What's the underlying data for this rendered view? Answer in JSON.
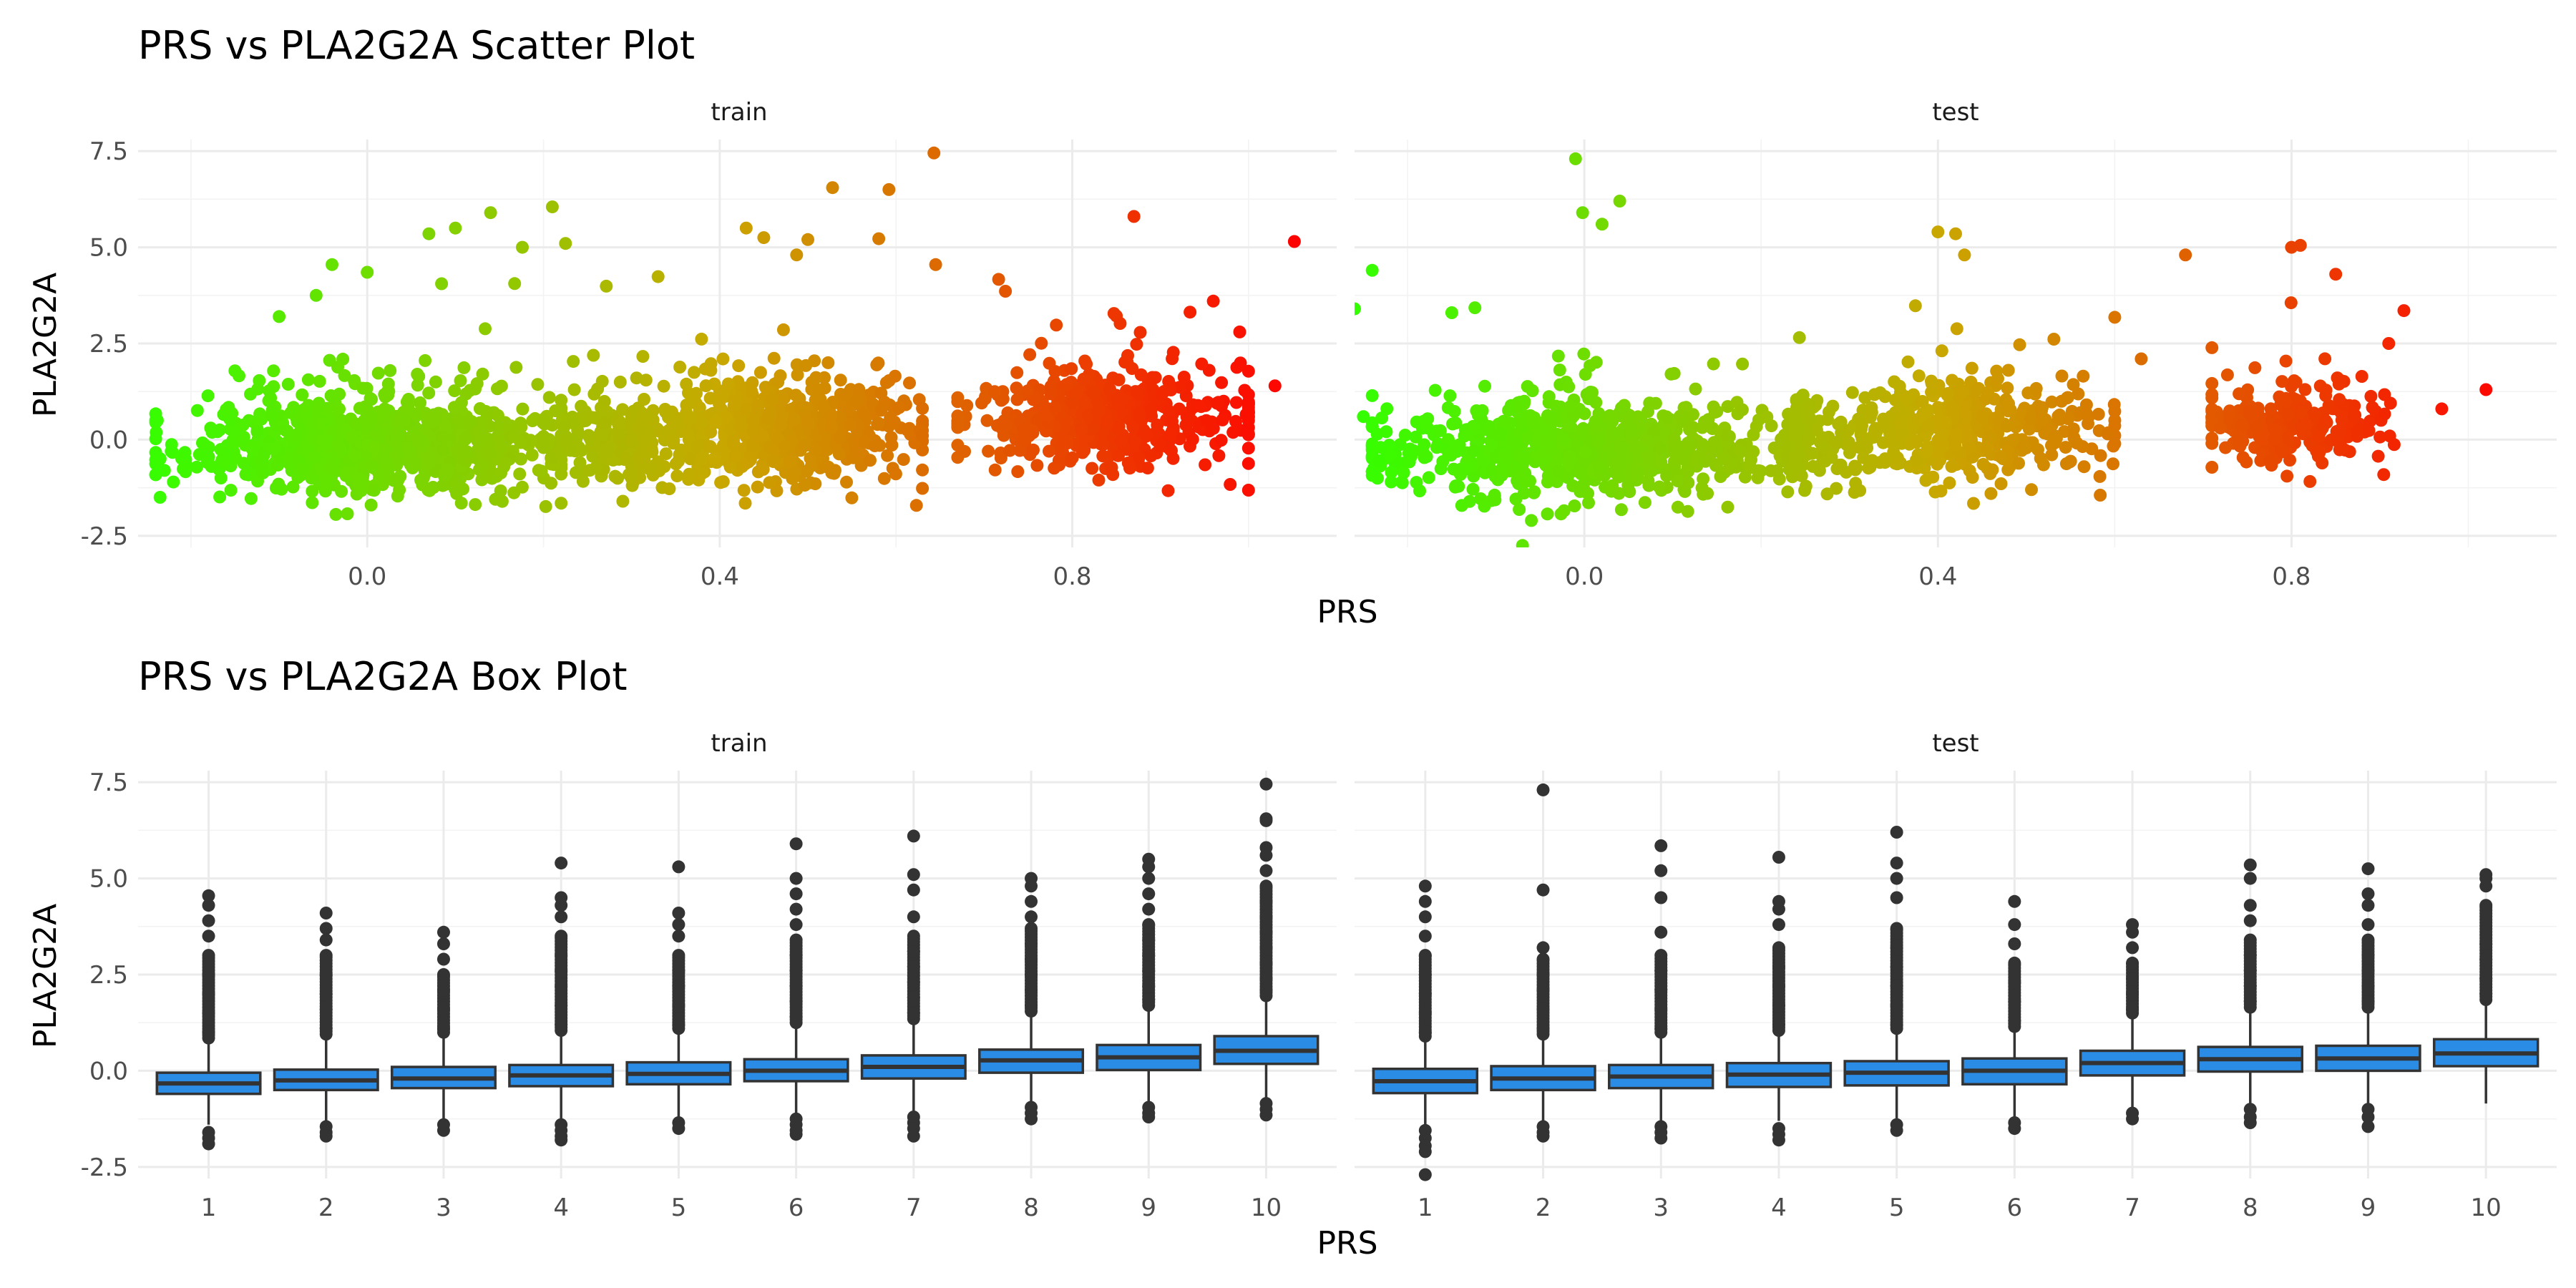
{
  "figure": {
    "scatter_title": "PRS vs PLA2G2A Scatter Plot",
    "box_title": "PRS vs PLA2G2A Box Plot",
    "xlabel": "PRS",
    "ylabel": "PLA2G2A",
    "panels": [
      "train",
      "test"
    ]
  },
  "colors": {
    "gradient_low": "#33ff00",
    "gradient_mid": "#c8a800",
    "gradient_high": "#ff0000",
    "box_fill": "#2b8ce6",
    "box_line": "#333333",
    "outlier": "#333333",
    "grid": "#ebebeb"
  },
  "chart_data": [
    {
      "type": "scatter",
      "title": "PRS vs PLA2G2A Scatter Plot",
      "xlabel": "PRS",
      "ylabel": "PLA2G2A",
      "facets": [
        "train",
        "test"
      ],
      "xlim": [
        -0.26,
        1.1
      ],
      "ylim": [
        -2.8,
        7.8
      ],
      "x_ticks": [
        0.0,
        0.4,
        0.8
      ],
      "x_tick_labels": [
        "0.0",
        "0.4",
        "0.8"
      ],
      "y_ticks": [
        -2.5,
        0.0,
        2.5,
        5.0,
        7.5
      ],
      "y_tick_labels": [
        "-2.5",
        "0.0",
        "2.5",
        "5.0",
        "7.5"
      ],
      "color_by": "PRS",
      "grid": true,
      "legend": "none",
      "series": [
        {
          "facet": "train",
          "clusters": [
            {
              "x_min": -0.24,
              "x_max": 0.22,
              "center": 0.02,
              "y_mean": -0.2,
              "y_sd": 0.62,
              "n": 900
            },
            {
              "x_min": 0.2,
              "x_max": 0.33,
              "center": 0.27,
              "y_mean": 0.05,
              "y_sd": 0.55,
              "n": 160
            },
            {
              "x_min": 0.3,
              "x_max": 0.63,
              "center": 0.46,
              "y_mean": 0.25,
              "y_sd": 0.68,
              "n": 650
            },
            {
              "x_min": 0.67,
              "x_max": 1.0,
              "center": 0.84,
              "y_mean": 0.6,
              "y_sd": 0.62,
              "n": 520
            }
          ],
          "highlights": [
            {
              "x": 0.643,
              "y": 7.45
            },
            {
              "x": 0.592,
              "y": 6.5
            },
            {
              "x": 0.528,
              "y": 6.55
            },
            {
              "x": 1.052,
              "y": 5.15
            },
            {
              "x": 0.645,
              "y": 4.55
            },
            {
              "x": 0.21,
              "y": 6.05
            },
            {
              "x": 0.07,
              "y": 5.35
            },
            {
              "x": 0.14,
              "y": 5.9
            },
            {
              "x": 0.1,
              "y": 5.5
            },
            {
              "x": 0.176,
              "y": 5.0
            },
            {
              "x": 0.225,
              "y": 5.1
            },
            {
              "x": -0.04,
              "y": 4.55
            },
            {
              "x": 0.0,
              "y": 4.35
            },
            {
              "x": -0.058,
              "y": 3.75
            },
            {
              "x": 0.43,
              "y": 5.5
            },
            {
              "x": 0.45,
              "y": 5.25
            },
            {
              "x": 0.5,
              "y": 5.2
            },
            {
              "x": 0.87,
              "y": 5.8
            },
            {
              "x": 0.96,
              "y": 3.6
            },
            {
              "x": 0.99,
              "y": 2.8
            },
            {
              "x": 1.03,
              "y": 1.4
            },
            {
              "x": -0.1,
              "y": 3.2
            },
            {
              "x": -0.22,
              "y": -1.1
            },
            {
              "x": 0.83,
              "y": -1.05
            },
            {
              "x": 0.29,
              "y": -1.6
            },
            {
              "x": 0.22,
              "y": -1.65
            }
          ]
        },
        {
          "facet": "test",
          "clusters": [
            {
              "x_min": -0.24,
              "x_max": 0.24,
              "center": 0.0,
              "y_mean": -0.25,
              "y_sd": 0.6,
              "n": 750
            },
            {
              "x_min": 0.23,
              "x_max": 0.3,
              "center": 0.25,
              "y_mean": -0.05,
              "y_sd": 0.5,
              "n": 60
            },
            {
              "x_min": 0.24,
              "x_max": 0.6,
              "center": 0.42,
              "y_mean": 0.25,
              "y_sd": 0.62,
              "n": 460
            },
            {
              "x_min": 0.71,
              "x_max": 0.93,
              "center": 0.8,
              "y_mean": 0.45,
              "y_sd": 0.5,
              "n": 260
            }
          ],
          "highlights": [
            {
              "x": -0.01,
              "y": 7.3
            },
            {
              "x": 0.04,
              "y": 6.2
            },
            {
              "x": -0.002,
              "y": 5.9
            },
            {
              "x": 0.02,
              "y": 5.6
            },
            {
              "x": 0.8,
              "y": 5.0
            },
            {
              "x": 0.81,
              "y": 5.05
            },
            {
              "x": 0.68,
              "y": 4.8
            },
            {
              "x": 0.85,
              "y": 4.3
            },
            {
              "x": 0.4,
              "y": 5.4
            },
            {
              "x": 0.42,
              "y": 5.35
            },
            {
              "x": 0.43,
              "y": 4.8
            },
            {
              "x": 0.91,
              "y": 2.5
            },
            {
              "x": 1.02,
              "y": 1.3
            },
            {
              "x": 0.97,
              "y": 0.8
            },
            {
              "x": -0.24,
              "y": 4.4
            },
            {
              "x": -0.26,
              "y": 3.4
            },
            {
              "x": -0.3,
              "y": -0.95
            },
            {
              "x": -0.25,
              "y": 0.6
            },
            {
              "x": -0.27,
              "y": 0.95
            },
            {
              "x": -0.06,
              "y": -2.1
            },
            {
              "x": -0.07,
              "y": -2.75
            },
            {
              "x": -0.15,
              "y": 3.3
            },
            {
              "x": 0.63,
              "y": 2.1
            },
            {
              "x": 0.6,
              "y": 0.5
            },
            {
              "x": 0.46,
              "y": -1.4
            }
          ]
        }
      ]
    },
    {
      "type": "box",
      "title": "PRS vs PLA2G2A Box Plot",
      "xlabel": "PRS",
      "ylabel": "PLA2G2A",
      "facets": [
        "train",
        "test"
      ],
      "categories": [
        "1",
        "2",
        "3",
        "4",
        "5",
        "6",
        "7",
        "8",
        "9",
        "10"
      ],
      "ylim": [
        -2.8,
        7.8
      ],
      "y_ticks": [
        -2.5,
        0.0,
        2.5,
        5.0,
        7.5
      ],
      "y_tick_labels": [
        "-2.5",
        "0.0",
        "2.5",
        "5.0",
        "7.5"
      ],
      "grid": true,
      "legend": "none",
      "series": [
        {
          "facet": "train",
          "boxes": [
            {
              "q1": -0.6,
              "median": -0.33,
              "q3": -0.05,
              "lower": -1.4,
              "upper": 0.75,
              "out_lo": [
                -1.6,
                -1.75,
                -1.9
              ],
              "out_hi": [
                1.0,
                1.5,
                2.0,
                2.5,
                3.0,
                3.5,
                3.9,
                4.3,
                4.55
              ]
            },
            {
              "q1": -0.5,
              "median": -0.25,
              "q3": 0.03,
              "lower": -1.3,
              "upper": 0.85,
              "out_lo": [
                -1.45,
                -1.6,
                -1.7
              ],
              "out_hi": [
                1.1,
                1.6,
                2.0,
                2.5,
                3.0,
                3.4,
                3.7,
                4.1
              ]
            },
            {
              "q1": -0.45,
              "median": -0.2,
              "q3": 0.1,
              "lower": -1.25,
              "upper": 0.9,
              "out_lo": [
                -1.4,
                -1.55
              ],
              "out_hi": [
                1.1,
                1.6,
                2.1,
                2.5,
                2.9,
                3.3,
                3.6
              ]
            },
            {
              "q1": -0.4,
              "median": -0.12,
              "q3": 0.15,
              "lower": -1.25,
              "upper": 0.95,
              "out_lo": [
                -1.4,
                -1.55,
                -1.7,
                -1.8
              ],
              "out_hi": [
                1.2,
                1.7,
                2.2,
                2.6,
                3.0,
                3.5,
                4.0,
                4.3,
                4.5,
                5.4
              ]
            },
            {
              "q1": -0.35,
              "median": -0.08,
              "q3": 0.22,
              "lower": -1.2,
              "upper": 1.0,
              "out_lo": [
                -1.35,
                -1.5
              ],
              "out_hi": [
                1.2,
                1.7,
                2.2,
                2.6,
                3.0,
                3.5,
                3.8,
                4.1,
                5.3
              ]
            },
            {
              "q1": -0.27,
              "median": 0.0,
              "q3": 0.3,
              "lower": -1.1,
              "upper": 1.15,
              "out_lo": [
                -1.25,
                -1.4,
                -1.55,
                -1.65
              ],
              "out_hi": [
                1.4,
                1.8,
                2.2,
                2.6,
                3.0,
                3.4,
                3.8,
                4.2,
                4.6,
                5.0,
                5.9
              ]
            },
            {
              "q1": -0.2,
              "median": 0.1,
              "q3": 0.4,
              "lower": -1.05,
              "upper": 1.25,
              "out_lo": [
                -1.2,
                -1.35,
                -1.5,
                -1.7
              ],
              "out_hi": [
                1.5,
                1.9,
                2.3,
                2.7,
                3.1,
                3.5,
                4.0,
                4.7,
                5.1,
                6.1
              ]
            },
            {
              "q1": -0.05,
              "median": 0.27,
              "q3": 0.55,
              "lower": -0.85,
              "upper": 1.45,
              "out_lo": [
                -0.95,
                -1.1,
                -1.25
              ],
              "out_hi": [
                1.7,
                2.1,
                2.5,
                2.9,
                3.3,
                3.7,
                4.0,
                4.4,
                4.8,
                5.0
              ]
            },
            {
              "q1": 0.02,
              "median": 0.35,
              "q3": 0.67,
              "lower": -0.8,
              "upper": 1.6,
              "out_lo": [
                -0.95,
                -1.1,
                -1.2
              ],
              "out_hi": [
                1.85,
                2.2,
                2.6,
                3.0,
                3.4,
                3.8,
                4.2,
                4.6,
                5.0,
                5.3,
                5.5
              ]
            },
            {
              "q1": 0.18,
              "median": 0.52,
              "q3": 0.9,
              "lower": -0.7,
              "upper": 1.85,
              "out_lo": [
                -0.85,
                -1.0,
                -1.15
              ],
              "out_hi": [
                2.1,
                2.4,
                2.8,
                3.2,
                3.6,
                4.0,
                4.4,
                4.8,
                5.2,
                5.6,
                5.8,
                6.5,
                6.55,
                7.45
              ]
            }
          ]
        },
        {
          "facet": "test",
          "boxes": [
            {
              "q1": -0.58,
              "median": -0.27,
              "q3": 0.05,
              "lower": -1.4,
              "upper": 0.8,
              "out_lo": [
                -1.55,
                -1.75,
                -1.95,
                -2.1,
                -2.7
              ],
              "out_hi": [
                1.0,
                1.5,
                2.0,
                2.5,
                3.0,
                3.5,
                4.0,
                4.4,
                4.8
              ]
            },
            {
              "q1": -0.5,
              "median": -0.2,
              "q3": 0.12,
              "lower": -1.35,
              "upper": 0.85,
              "out_lo": [
                -1.45,
                -1.6,
                -1.7
              ],
              "out_hi": [
                1.1,
                1.6,
                2.1,
                2.5,
                2.9,
                3.2,
                4.7,
                7.3
              ]
            },
            {
              "q1": -0.45,
              "median": -0.15,
              "q3": 0.15,
              "lower": -1.3,
              "upper": 0.9,
              "out_lo": [
                -1.45,
                -1.6,
                -1.75
              ],
              "out_hi": [
                1.1,
                1.6,
                2.1,
                2.6,
                3.0,
                3.6,
                4.5,
                5.2,
                5.85
              ]
            },
            {
              "q1": -0.42,
              "median": -0.1,
              "q3": 0.2,
              "lower": -1.3,
              "upper": 0.95,
              "out_lo": [
                -1.5,
                -1.65,
                -1.8
              ],
              "out_hi": [
                1.2,
                1.7,
                2.2,
                2.7,
                3.2,
                3.8,
                4.2,
                4.4,
                5.55
              ]
            },
            {
              "q1": -0.38,
              "median": -0.05,
              "q3": 0.25,
              "lower": -1.25,
              "upper": 1.0,
              "out_lo": [
                -1.4,
                -1.55
              ],
              "out_hi": [
                1.2,
                1.7,
                2.2,
                2.7,
                3.2,
                3.7,
                4.5,
                5.0,
                5.4,
                6.2
              ]
            },
            {
              "q1": -0.35,
              "median": 0.0,
              "q3": 0.32,
              "lower": -1.2,
              "upper": 1.05,
              "out_lo": [
                -1.35,
                -1.5
              ],
              "out_hi": [
                1.3,
                1.8,
                2.3,
                2.8,
                3.3,
                3.8,
                4.4
              ]
            },
            {
              "q1": -0.12,
              "median": 0.2,
              "q3": 0.52,
              "lower": -0.95,
              "upper": 1.4,
              "out_lo": [
                -1.1,
                -1.25
              ],
              "out_hi": [
                1.6,
                2.0,
                2.4,
                2.8,
                3.2,
                3.6,
                3.8
              ]
            },
            {
              "q1": -0.02,
              "median": 0.3,
              "q3": 0.62,
              "lower": -0.85,
              "upper": 1.55,
              "out_lo": [
                -1.0,
                -1.2,
                -1.35
              ],
              "out_hi": [
                1.8,
                2.2,
                2.6,
                3.0,
                3.4,
                3.9,
                4.3,
                5.0,
                5.35
              ]
            },
            {
              "q1": 0.0,
              "median": 0.32,
              "q3": 0.65,
              "lower": -0.85,
              "upper": 1.55,
              "out_lo": [
                -1.0,
                -1.2,
                -1.45
              ],
              "out_hi": [
                1.8,
                2.2,
                2.6,
                3.0,
                3.4,
                3.8,
                4.3,
                4.6,
                5.25
              ]
            },
            {
              "q1": 0.12,
              "median": 0.45,
              "q3": 0.82,
              "lower": -0.85,
              "upper": 1.75,
              "out_lo": [],
              "out_hi": [
                2.0,
                2.4,
                2.9,
                3.3,
                4.3,
                4.8,
                5.0,
                5.1
              ]
            }
          ]
        }
      ]
    }
  ]
}
